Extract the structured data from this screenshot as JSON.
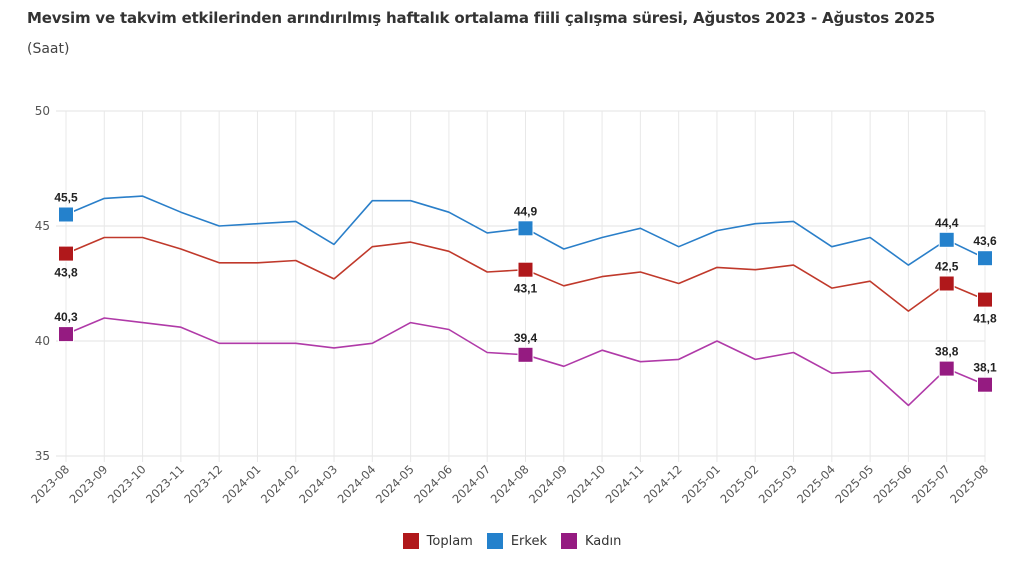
{
  "chart_data": {
    "type": "line",
    "title": "Mevsim ve takvim etkilerinden arındırılmış haftalık ortalama fiili çalışma süresi, Ağustos 2023 - Ağustos 2025",
    "subtitle": "(Saat)",
    "xlabel": "",
    "ylabel": "",
    "ylim": [
      35,
      50
    ],
    "yticks": [
      "50",
      "45",
      "40",
      "35"
    ],
    "ytick_values": [
      50,
      45,
      40,
      35
    ],
    "grid": true,
    "legend_position": "bottom",
    "x": [
      "2023-08",
      "2023-09",
      "2023-10",
      "2023-11",
      "2023-12",
      "2024-01",
      "2024-02",
      "2024-03",
      "2024-04",
      "2024-05",
      "2024-06",
      "2024-07",
      "2024-08",
      "2024-09",
      "2024-10",
      "2024-11",
      "2024-12",
      "2025-01",
      "2025-02",
      "2025-03",
      "2025-04",
      "2025-05",
      "2025-06",
      "2025-07",
      "2025-08"
    ],
    "marked_indices": [
      0,
      12,
      23,
      24
    ],
    "series": [
      {
        "name": "Erkek",
        "color": "#2a7fc9",
        "marker_color": "#2481cc",
        "label_side": [
          "above",
          "above",
          "above",
          "above"
        ],
        "values": [
          45.5,
          46.2,
          46.3,
          45.6,
          45.0,
          45.1,
          45.2,
          44.2,
          46.1,
          46.1,
          45.6,
          44.7,
          44.9,
          44.0,
          44.5,
          44.9,
          44.1,
          44.8,
          45.1,
          45.2,
          44.1,
          44.5,
          43.3,
          44.4,
          43.6
        ],
        "labels": [
          "45,5",
          "44,9",
          "44,4",
          "43,6"
        ]
      },
      {
        "name": "Toplam",
        "color": "#c0392b",
        "marker_color": "#b0181b",
        "label_side": [
          "below",
          "below",
          "above",
          "below"
        ],
        "values": [
          43.8,
          44.5,
          44.5,
          44.0,
          43.4,
          43.4,
          43.5,
          42.7,
          44.1,
          44.3,
          43.9,
          43.0,
          43.1,
          42.4,
          42.8,
          43.0,
          42.5,
          43.2,
          43.1,
          43.3,
          42.3,
          42.6,
          41.3,
          42.5,
          41.8
        ],
        "labels": [
          "43,8",
          "43,1",
          "42,5",
          "41,8"
        ]
      },
      {
        "name": "Kadın",
        "color": "#b03aa8",
        "marker_color": "#951b81",
        "label_side": [
          "above",
          "above",
          "above",
          "above"
        ],
        "values": [
          40.3,
          41.0,
          40.8,
          40.6,
          39.9,
          39.9,
          39.9,
          39.7,
          39.9,
          40.8,
          40.5,
          39.5,
          39.4,
          38.9,
          39.6,
          39.1,
          39.2,
          40.0,
          39.2,
          39.5,
          38.6,
          38.7,
          37.2,
          38.8,
          38.1
        ],
        "labels": [
          "40,3",
          "39,4",
          "38,8",
          "38,1"
        ]
      }
    ],
    "legend": [
      {
        "name": "Toplam",
        "color": "#b0181b"
      },
      {
        "name": "Erkek",
        "color": "#2481cc"
      },
      {
        "name": "Kadın",
        "color": "#951b81"
      }
    ]
  }
}
